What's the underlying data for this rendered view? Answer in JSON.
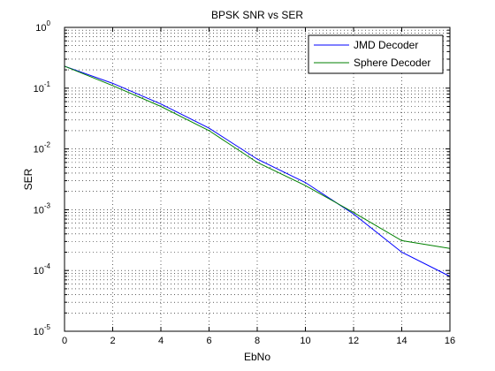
{
  "chart_data": {
    "type": "line",
    "title": "BPSK SNR vs SER",
    "xlabel": "EbNo",
    "ylabel": "SER",
    "x": [
      0,
      2,
      4,
      6,
      8,
      10,
      12,
      14,
      16
    ],
    "xlim": [
      0,
      16
    ],
    "ylim": [
      1e-05,
      1
    ],
    "yscale": "log",
    "grid": true,
    "legend_position": "top-right",
    "x_tick_labels": [
      "0",
      "2",
      "4",
      "6",
      "8",
      "10",
      "12",
      "14",
      "16"
    ],
    "y_tick_labels": [
      {
        "base": "10",
        "exp": "0"
      },
      {
        "base": "10",
        "exp": "-1"
      },
      {
        "base": "10",
        "exp": "-2"
      },
      {
        "base": "10",
        "exp": "-3"
      },
      {
        "base": "10",
        "exp": "-4"
      },
      {
        "base": "10",
        "exp": "-5"
      }
    ],
    "series": [
      {
        "name": "JMD Decoder",
        "color": "#0000ff",
        "values": [
          0.23,
          0.12,
          0.055,
          0.022,
          0.0068,
          0.0028,
          0.00085,
          0.0002,
          8e-05
        ]
      },
      {
        "name": "Sphere Decoder",
        "color": "#008000",
        "values": [
          0.23,
          0.11,
          0.05,
          0.02,
          0.006,
          0.0025,
          0.0009,
          0.00031,
          0.00023
        ]
      }
    ]
  }
}
